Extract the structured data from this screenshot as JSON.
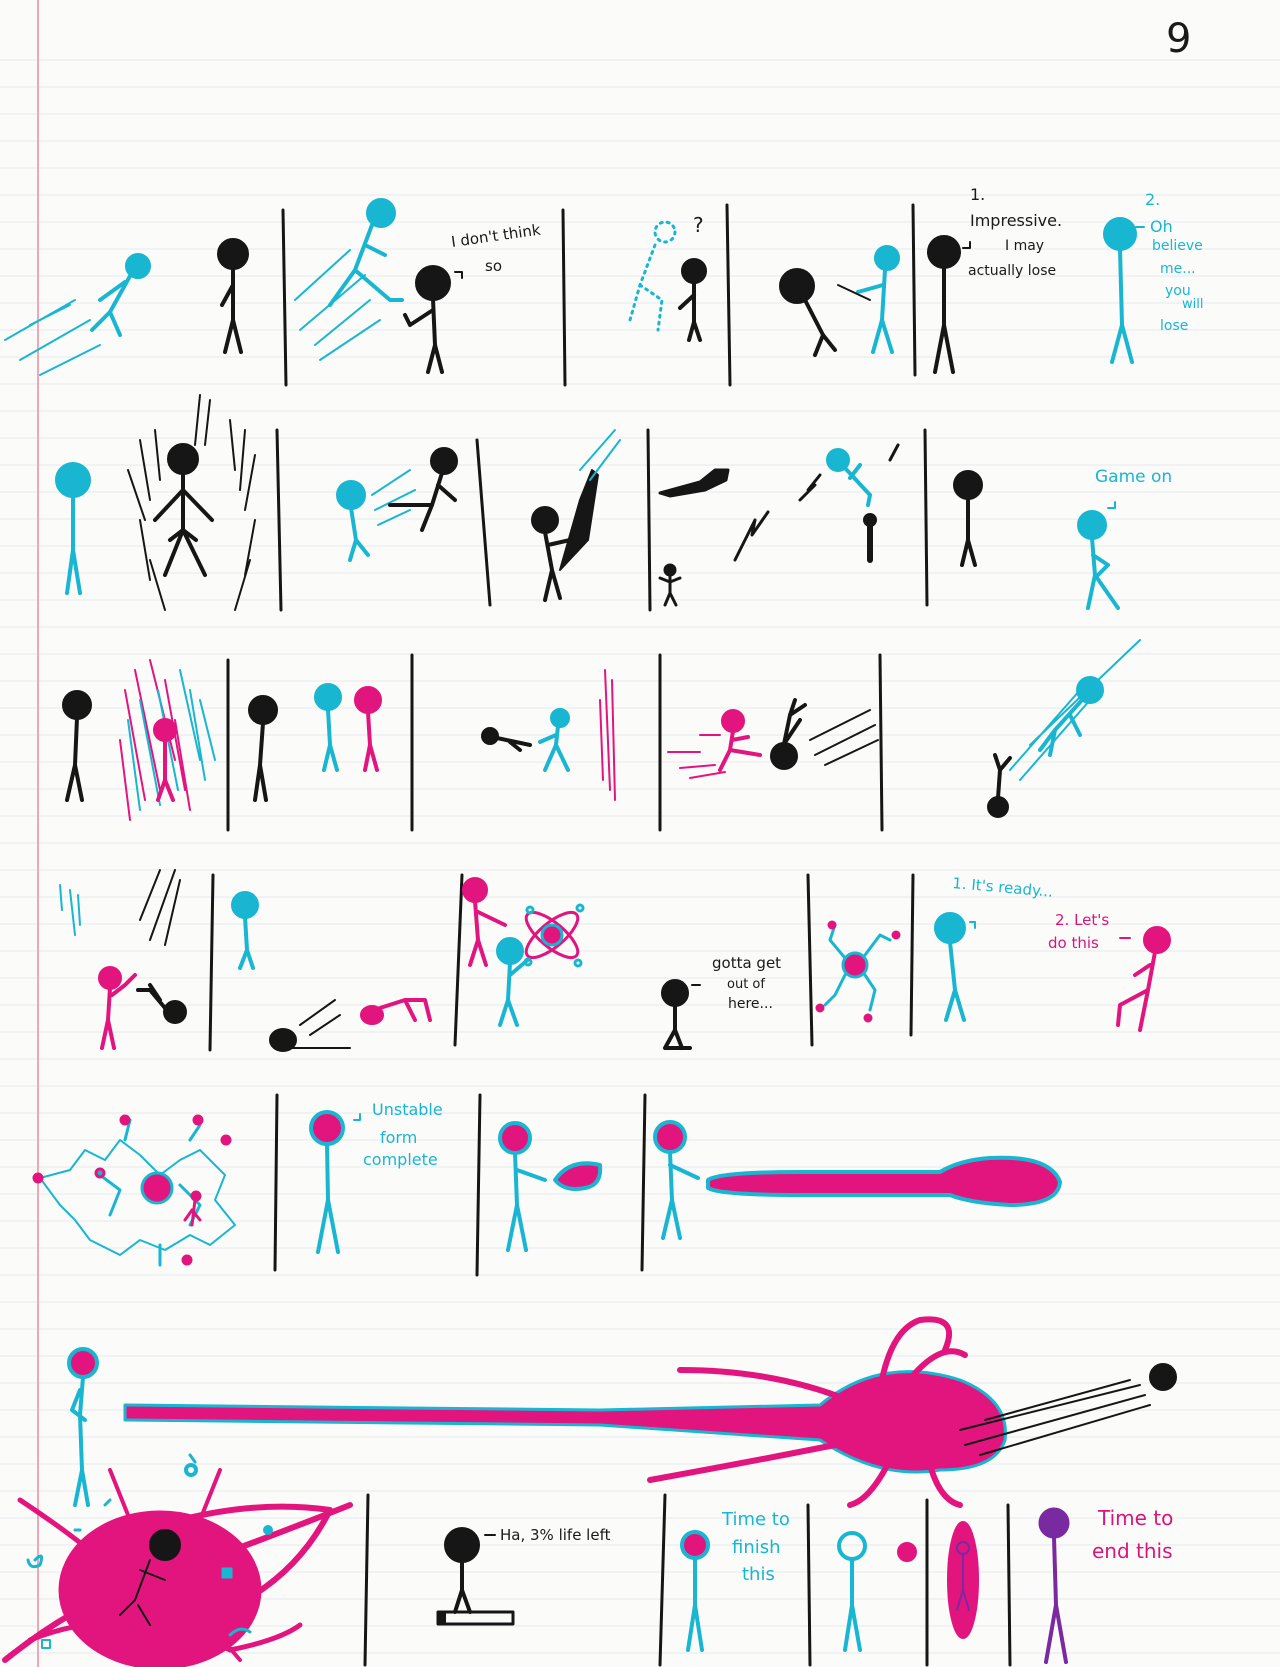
{
  "page_number": "9",
  "colors": {
    "paper": "#fbfbfa",
    "margin_line": "#f0a6b4",
    "rule_line": "#e4e9ee",
    "black_ink": "#161616",
    "cyan_ink": "#19b6d2",
    "pink_ink": "#e2157f",
    "purple_ink": "#7a2aa0"
  },
  "dialogue": {
    "row1": {
      "i_dont_think_so_1": "I don't think",
      "i_dont_think_so_2": "so",
      "question_mark": "?",
      "impressive_num": "1.",
      "impressive_1": "Impressive.",
      "impressive_2": "I may",
      "impressive_3": "actually lose",
      "oh_num": "2.",
      "oh_1": "Oh",
      "oh_2": "believe",
      "oh_3": "me...",
      "oh_4": "you",
      "oh_5": "will",
      "oh_6": "lose"
    },
    "row2": {
      "game_on": "Game on"
    },
    "row4": {
      "gotta_1": "gotta get",
      "gotta_2": "out of",
      "gotta_3": "here...",
      "ready": "1. It's ready...",
      "lets_1": "2. Let's",
      "lets_2": "do this"
    },
    "row5": {
      "unstable_1": "Unstable",
      "unstable_2": "form",
      "unstable_3": "complete"
    },
    "row7": {
      "life_left": "Ha, 3% life left",
      "finish_1": "Time to",
      "finish_2": "finish",
      "finish_3": "this",
      "end_1": "Time to",
      "end_2": "end this"
    }
  }
}
